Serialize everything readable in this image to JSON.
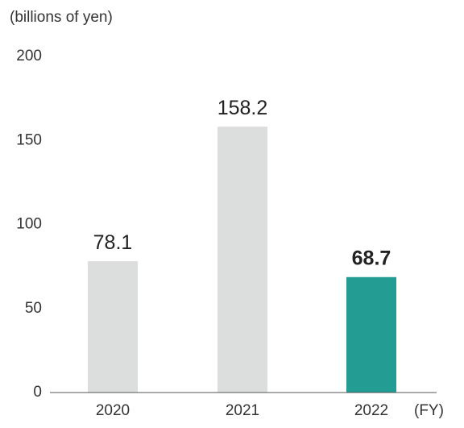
{
  "chart_data": {
    "type": "bar",
    "y_label": "(billions of yen)",
    "x_label": "(FY)",
    "categories": [
      "2020",
      "2021",
      "2022"
    ],
    "values": [
      78.1,
      158.2,
      68.7
    ],
    "colors": [
      "#dcdddd",
      "#dcdddd",
      "#239d94"
    ],
    "ylim": [
      0,
      200
    ],
    "yticks": [
      0,
      50,
      100,
      150,
      200
    ],
    "grid": false
  }
}
